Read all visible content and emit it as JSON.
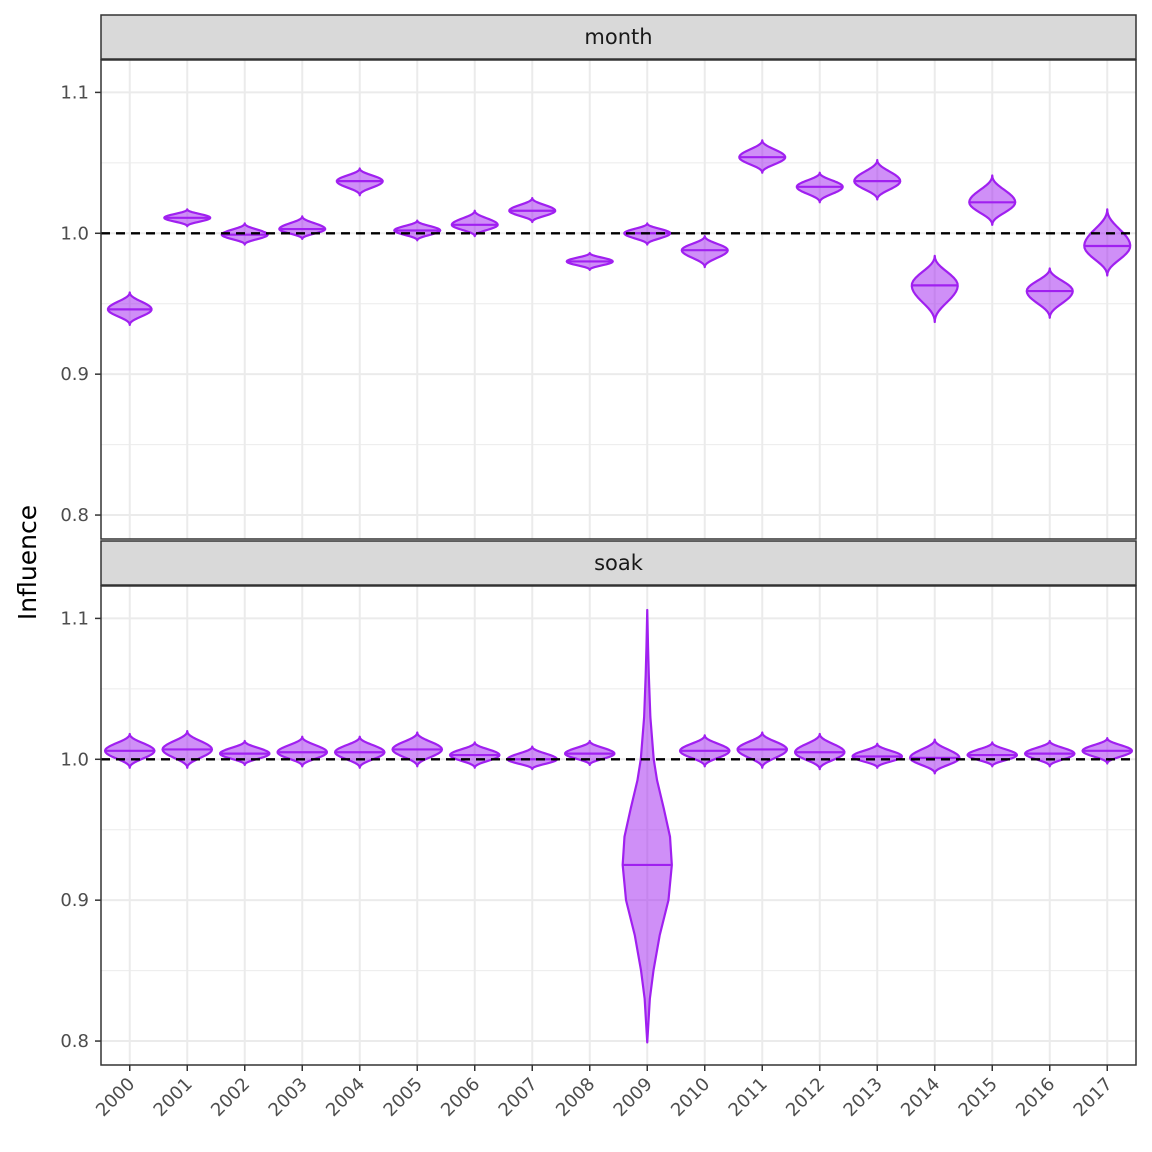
{
  "colors": {
    "fill": "#A020F0",
    "stroke": "#A020F0",
    "strip_bg": "#D9D9D9",
    "grid": "#EBEBEB",
    "reference_line": "#000000"
  },
  "chart_data": {
    "type": "violin",
    "xlabel": "",
    "ylabel": "Influence",
    "categories": [
      "2000",
      "2001",
      "2002",
      "2003",
      "2004",
      "2005",
      "2006",
      "2007",
      "2008",
      "2009",
      "2010",
      "2011",
      "2012",
      "2013",
      "2014",
      "2015",
      "2016",
      "2017"
    ],
    "ylim": [
      0.783,
      1.123
    ],
    "y_ticks": [
      "0.8",
      "0.9",
      "1.0",
      "1.1"
    ],
    "reference_line": 1.0,
    "grid": true,
    "panels": [
      {
        "name": "month",
        "series": [
          {
            "year": "2000",
            "median": 0.946,
            "min": 0.935,
            "max": 0.958,
            "halfwidth": 0.38
          },
          {
            "year": "2001",
            "median": 1.011,
            "min": 1.005,
            "max": 1.017,
            "halfwidth": 0.4
          },
          {
            "year": "2002",
            "median": 0.999,
            "min": 0.992,
            "max": 1.007,
            "halfwidth": 0.4
          },
          {
            "year": "2003",
            "median": 1.003,
            "min": 0.996,
            "max": 1.012,
            "halfwidth": 0.4
          },
          {
            "year": "2004",
            "median": 1.037,
            "min": 1.027,
            "max": 1.046,
            "halfwidth": 0.4
          },
          {
            "year": "2005",
            "median": 1.002,
            "min": 0.995,
            "max": 1.009,
            "halfwidth": 0.4
          },
          {
            "year": "2006",
            "median": 1.006,
            "min": 0.998,
            "max": 1.016,
            "halfwidth": 0.4
          },
          {
            "year": "2007",
            "median": 1.016,
            "min": 1.008,
            "max": 1.025,
            "halfwidth": 0.4
          },
          {
            "year": "2008",
            "median": 0.98,
            "min": 0.974,
            "max": 0.986,
            "halfwidth": 0.4
          },
          {
            "year": "2009",
            "median": 1.0,
            "min": 0.992,
            "max": 1.007,
            "halfwidth": 0.4
          },
          {
            "year": "2010",
            "median": 0.988,
            "min": 0.976,
            "max": 0.998,
            "halfwidth": 0.4
          },
          {
            "year": "2011",
            "median": 1.054,
            "min": 1.043,
            "max": 1.066,
            "halfwidth": 0.4
          },
          {
            "year": "2012",
            "median": 1.033,
            "min": 1.022,
            "max": 1.043,
            "halfwidth": 0.4
          },
          {
            "year": "2013",
            "median": 1.037,
            "min": 1.024,
            "max": 1.052,
            "halfwidth": 0.4
          },
          {
            "year": "2014",
            "median": 0.963,
            "min": 0.937,
            "max": 0.984,
            "halfwidth": 0.4
          },
          {
            "year": "2015",
            "median": 1.022,
            "min": 1.006,
            "max": 1.041,
            "halfwidth": 0.4
          },
          {
            "year": "2016",
            "median": 0.959,
            "min": 0.94,
            "max": 0.975,
            "halfwidth": 0.4
          },
          {
            "year": "2017",
            "median": 0.991,
            "min": 0.97,
            "max": 1.017,
            "halfwidth": 0.4
          }
        ]
      },
      {
        "name": "soak",
        "series": [
          {
            "year": "2000",
            "median": 1.006,
            "min": 0.994,
            "max": 1.018,
            "halfwidth": 0.43
          },
          {
            "year": "2001",
            "median": 1.007,
            "min": 0.994,
            "max": 1.02,
            "halfwidth": 0.43
          },
          {
            "year": "2002",
            "median": 1.004,
            "min": 0.996,
            "max": 1.013,
            "halfwidth": 0.43
          },
          {
            "year": "2003",
            "median": 1.005,
            "min": 0.995,
            "max": 1.016,
            "halfwidth": 0.43
          },
          {
            "year": "2004",
            "median": 1.005,
            "min": 0.994,
            "max": 1.016,
            "halfwidth": 0.43
          },
          {
            "year": "2005",
            "median": 1.007,
            "min": 0.995,
            "max": 1.019,
            "halfwidth": 0.43
          },
          {
            "year": "2006",
            "median": 1.003,
            "min": 0.994,
            "max": 1.012,
            "halfwidth": 0.43
          },
          {
            "year": "2007",
            "median": 1.0,
            "min": 0.993,
            "max": 1.009,
            "halfwidth": 0.43
          },
          {
            "year": "2008",
            "median": 1.004,
            "min": 0.996,
            "max": 1.013,
            "halfwidth": 0.43
          },
          {
            "year": "2009",
            "median": 0.925,
            "min": 0.799,
            "max": 1.106,
            "halfwidth": 0.45,
            "profile": [
              [
                0.799,
                0.0
              ],
              [
                0.83,
                0.1
              ],
              [
                0.85,
                0.24
              ],
              [
                0.875,
                0.48
              ],
              [
                0.9,
                0.82
              ],
              [
                0.925,
                0.95
              ],
              [
                0.945,
                0.88
              ],
              [
                0.965,
                0.64
              ],
              [
                0.985,
                0.38
              ],
              [
                1.0,
                0.25
              ],
              [
                1.03,
                0.12
              ],
              [
                1.06,
                0.06
              ],
              [
                1.08,
                0.03
              ],
              [
                1.106,
                0.0
              ]
            ]
          },
          {
            "year": "2010",
            "median": 1.006,
            "min": 0.995,
            "max": 1.017,
            "halfwidth": 0.43
          },
          {
            "year": "2011",
            "median": 1.007,
            "min": 0.994,
            "max": 1.019,
            "halfwidth": 0.43
          },
          {
            "year": "2012",
            "median": 1.005,
            "min": 0.993,
            "max": 1.018,
            "halfwidth": 0.43
          },
          {
            "year": "2013",
            "median": 1.002,
            "min": 0.994,
            "max": 1.011,
            "halfwidth": 0.43
          },
          {
            "year": "2014",
            "median": 1.001,
            "min": 0.99,
            "max": 1.014,
            "halfwidth": 0.43
          },
          {
            "year": "2015",
            "median": 1.003,
            "min": 0.995,
            "max": 1.012,
            "halfwidth": 0.43
          },
          {
            "year": "2016",
            "median": 1.004,
            "min": 0.995,
            "max": 1.013,
            "halfwidth": 0.43
          },
          {
            "year": "2017",
            "median": 1.006,
            "min": 0.997,
            "max": 1.015,
            "halfwidth": 0.43
          }
        ]
      }
    ]
  }
}
